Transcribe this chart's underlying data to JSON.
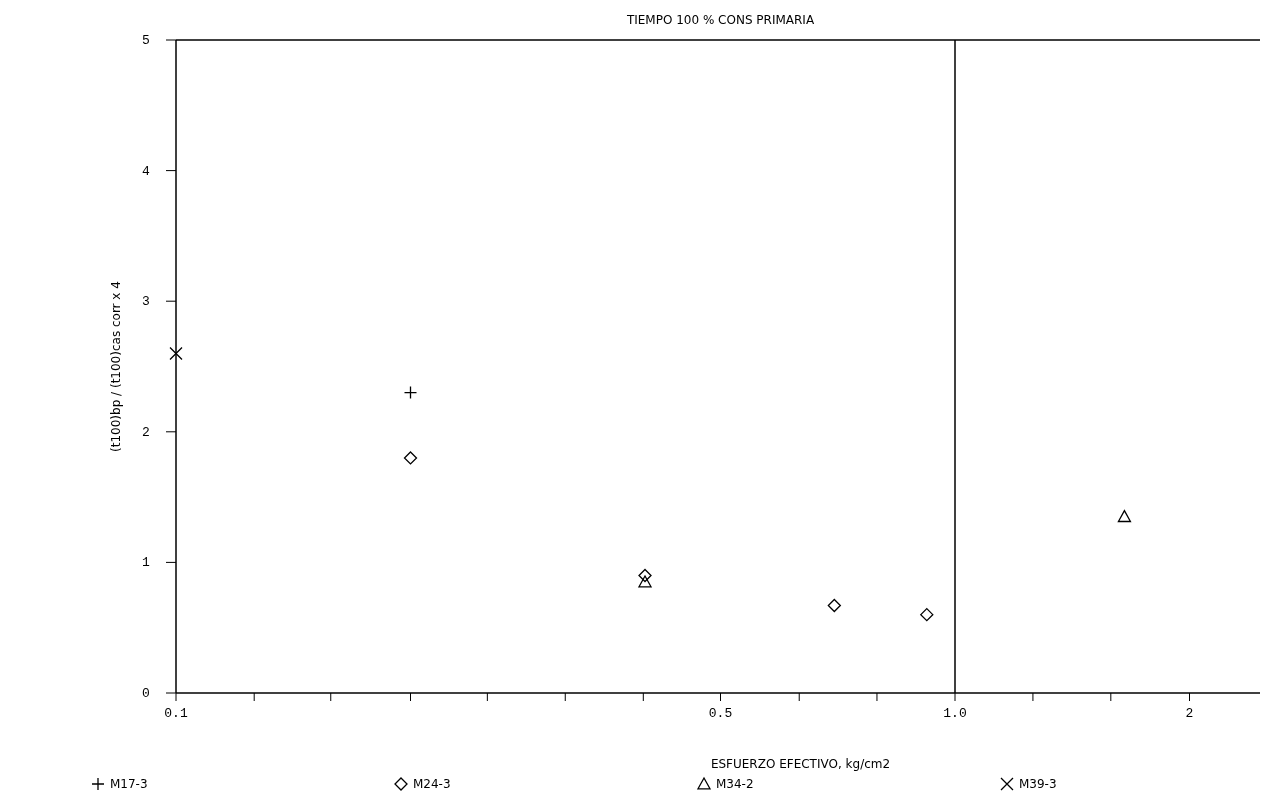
{
  "chart_data": {
    "type": "scatter",
    "title": "TIEMPO 100 % CONS PRIMARIA",
    "xlabel": "ESFUERZO EFECTIVO, kg/cm2",
    "ylabel": "(t100)bp / (t100)cas corr x 4",
    "log": "x",
    "xlim": [
      0.1,
      2.5
    ],
    "xticks": [
      0.1,
      {
        "value": 0.126,
        "label": null
      },
      {
        "value": 0.158,
        "label": null
      },
      {
        "value": 0.2,
        "label": null
      },
      {
        "value": 0.251,
        "label": null
      },
      {
        "value": 0.316,
        "label": null
      },
      {
        "value": 0.398,
        "label": null
      },
      0.5,
      {
        "value": 0.631,
        "label": null
      },
      {
        "value": 0.794,
        "label": null
      },
      {
        "value": 1,
        "label": "1.0"
      },
      {
        "value": 1.259,
        "label": null
      },
      {
        "value": 1.585,
        "label": null
      },
      2
    ],
    "ylim": [
      0,
      5
    ],
    "yticks": [
      0,
      1,
      2,
      3,
      4,
      5
    ],
    "grid": false,
    "legend": "bottom",
    "ref_lines": [
      {
        "axis": "x",
        "value": 1,
        "color": "#000000"
      }
    ],
    "series": [
      {
        "name": "M17-3",
        "color": "#000000",
        "marker": "cross",
        "x": [
          0.2
        ],
        "values": [
          2.3
        ]
      },
      {
        "name": "M24-3",
        "color": "#000000",
        "marker": "diamond",
        "x": [
          0.2,
          0.4,
          0.7,
          0.92
        ],
        "values": [
          1.8,
          0.9,
          0.67,
          0.6
        ]
      },
      {
        "name": "M34-2",
        "color": "#000000",
        "marker": "triangle",
        "x": [
          0.4,
          1.65
        ],
        "values": [
          0.85,
          1.35
        ]
      },
      {
        "name": "M39-3",
        "color": "#000000",
        "marker": "x",
        "x": [
          0.1
        ],
        "values": [
          2.6
        ]
      }
    ]
  }
}
